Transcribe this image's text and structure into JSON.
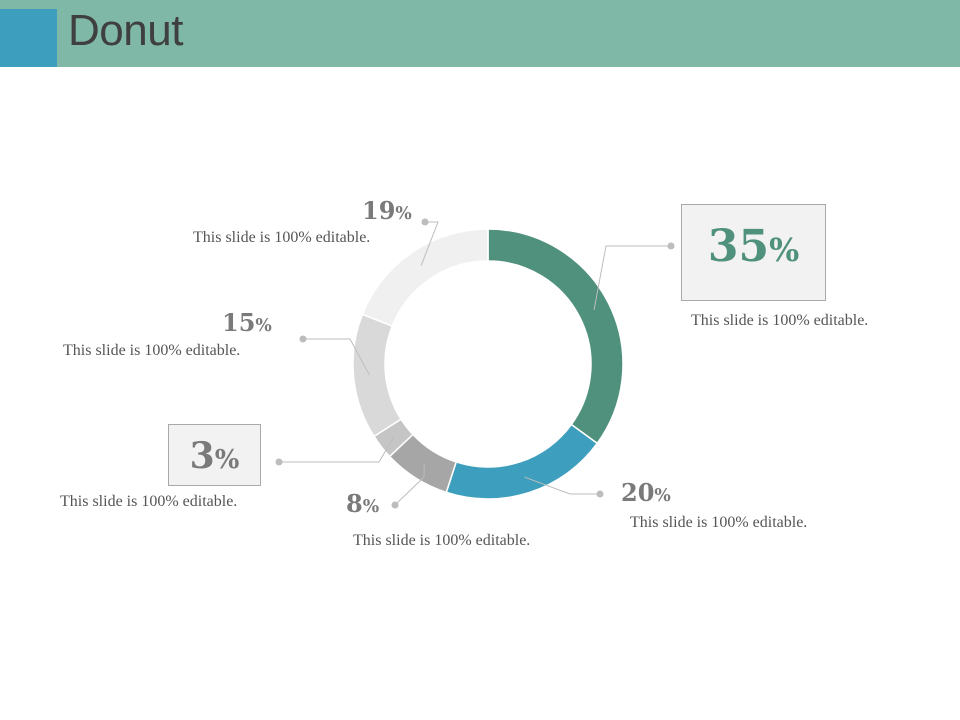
{
  "title": "Donut",
  "colors": {
    "header": "#7fb8a6",
    "header_square": "#3e9ebd",
    "slice_colors": [
      "#4f917c",
      "#3e9ebd",
      "#a6a6a6",
      "#c5c5c5",
      "#d9d9d9",
      "#f0f0f0"
    ],
    "accent_text": "#4f917c"
  },
  "chart_data": {
    "type": "pie",
    "variant": "donut",
    "title": "Donut",
    "categories": [
      "",
      "",
      "",
      "",
      "",
      ""
    ],
    "values": [
      35,
      20,
      8,
      3,
      15,
      19
    ],
    "unit": "%",
    "labels": [
      {
        "value": "35",
        "unit": "%",
        "caption": "This slide is 100% editable."
      },
      {
        "value": "20",
        "unit": "%",
        "caption": "This slide is 100% editable."
      },
      {
        "value": "8",
        "unit": "%",
        "caption": "This slide is 100% editable."
      },
      {
        "value": "3",
        "unit": "%",
        "caption": "This slide is 100% editable."
      },
      {
        "value": "15",
        "unit": "%",
        "caption": "This slide is 100% editable."
      },
      {
        "value": "19",
        "unit": "%",
        "caption": "This slide is 100% editable."
      }
    ]
  }
}
